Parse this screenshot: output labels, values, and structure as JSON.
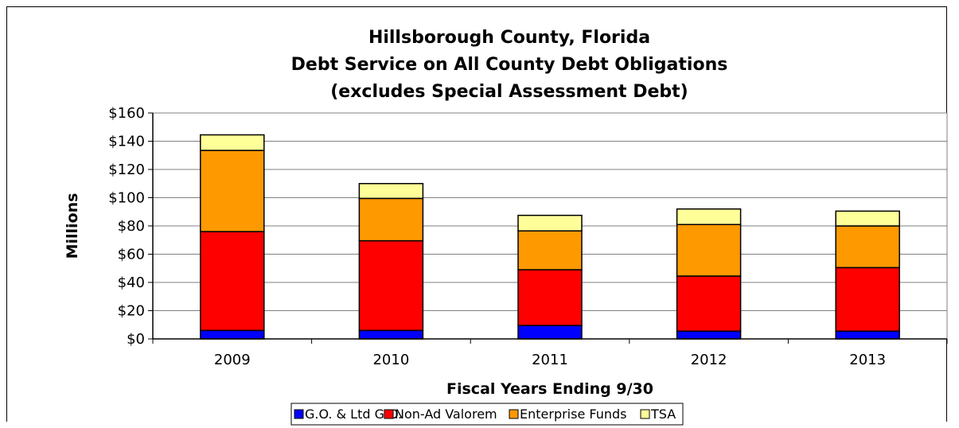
{
  "chart_data": {
    "type": "bar",
    "stacked": true,
    "title": [
      "Hillsborough County, Florida",
      "Debt Service on All County Debt Obligations",
      "(excludes Special Assessment Debt)"
    ],
    "xlabel": "Fiscal Years Ending 9/30",
    "ylabel": "Millions",
    "categories": [
      "2009",
      "2010",
      "2011",
      "2012",
      "2013"
    ],
    "ylim": [
      0,
      160
    ],
    "yticks": [
      "$0",
      "$20",
      "$40",
      "$60",
      "$80",
      "$100",
      "$120",
      "$140",
      "$160"
    ],
    "ytick_values": [
      0,
      20,
      40,
      60,
      80,
      100,
      120,
      140,
      160
    ],
    "grid": true,
    "legend_position": "bottom",
    "series": [
      {
        "name": "G.O. & Ltd G.O.",
        "color": "#0000FF",
        "values": [
          6,
          6,
          9.5,
          5.5,
          5.5
        ]
      },
      {
        "name": "Non-Ad Valorem",
        "color": "#FF0000",
        "values": [
          70,
          63.5,
          39.5,
          39,
          45
        ]
      },
      {
        "name": "Enterprise Funds",
        "color": "#FF9900",
        "values": [
          57.5,
          30,
          27.5,
          36.5,
          29.5
        ]
      },
      {
        "name": "TSA",
        "color": "#FFFF99",
        "values": [
          11,
          10.5,
          11,
          11,
          10.5
        ]
      }
    ]
  }
}
